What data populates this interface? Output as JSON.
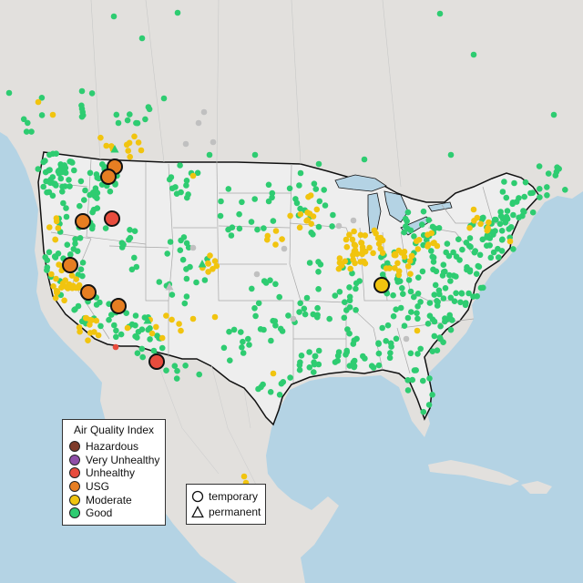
{
  "legend_aqi": {
    "title": "Air Quality Index",
    "items": [
      {
        "label": "Hazardous",
        "color": "#7e3b2a"
      },
      {
        "label": "Very Unhealthy",
        "color": "#8f4fa8"
      },
      {
        "label": "Unhealthy",
        "color": "#e84c3d"
      },
      {
        "label": "USG",
        "color": "#e67e22"
      },
      {
        "label": "Moderate",
        "color": "#f1c40f"
      },
      {
        "label": "Good",
        "color": "#2ecc71"
      }
    ]
  },
  "legend_shape": {
    "items": [
      {
        "label": "temporary",
        "icon": "circle-icon"
      },
      {
        "label": "permanent",
        "icon": "triangle-icon"
      }
    ]
  },
  "colors": {
    "water": "#b4d3e4",
    "land": "#e2e0dd",
    "usa": "#eeeeee",
    "no_data": "#c0c0c0"
  }
}
